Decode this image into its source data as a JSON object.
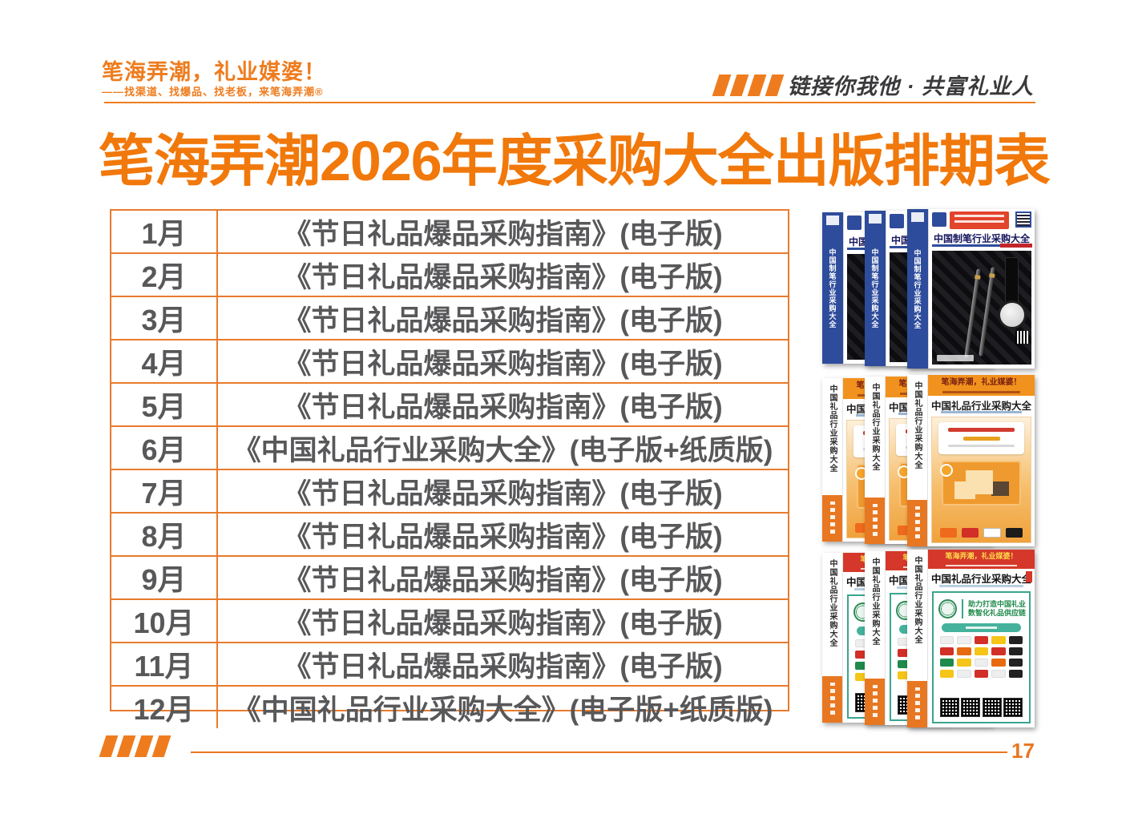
{
  "header": {
    "brand_title": "笔海弄潮，礼业媒婆！",
    "brand_subtitle": "——找渠道、找爆品、找老板，来笔海弄潮®",
    "slogan": "链接你我他 · 共富礼业人"
  },
  "title": "笔海弄潮2026年度采购大全出版排期表",
  "schedule": [
    {
      "month": "1月",
      "publication": "《节日礼品爆品采购指南》(电子版)"
    },
    {
      "month": "2月",
      "publication": "《节日礼品爆品采购指南》(电子版)"
    },
    {
      "month": "3月",
      "publication": "《节日礼品爆品采购指南》(电子版)"
    },
    {
      "month": "4月",
      "publication": "《节日礼品爆品采购指南》(电子版)"
    },
    {
      "month": "5月",
      "publication": "《节日礼品爆品采购指南》(电子版)"
    },
    {
      "month": "6月",
      "publication": "《中国礼品行业采购大全》(电子版+纸质版)"
    },
    {
      "month": "7月",
      "publication": "《节日礼品爆品采购指南》(电子版)"
    },
    {
      "month": "8月",
      "publication": "《节日礼品爆品采购指南》(电子版)"
    },
    {
      "month": "9月",
      "publication": "《节日礼品爆品采购指南》(电子版)"
    },
    {
      "month": "10月",
      "publication": "《节日礼品爆品采购指南》(电子版)"
    },
    {
      "month": "11月",
      "publication": "《节日礼品爆品采购指南》(电子版)"
    },
    {
      "month": "12月",
      "publication": "《中国礼品行业采购大全》(电子版+纸质版)"
    }
  ],
  "books": {
    "stack1": {
      "title": "中国制笔行业采购大全"
    },
    "stack2": {
      "banner": "笔海弄潮，礼业媒婆！",
      "title": "中国礼品行业采购大全"
    },
    "stack3": {
      "banner": "笔海弄潮，礼业媒婆！",
      "title": "中国礼品行业采购大全",
      "tagline_line1": "助力打造中国礼业",
      "tagline_line2": "数智化礼品供应链"
    }
  },
  "footer": {
    "page_number": "17"
  },
  "colors": {
    "accent_orange": "#ee7c1e",
    "title_orange": "#f1780a",
    "table_border": "#e97b2d",
    "table_text": "#58585a",
    "slogan_dark": "#3a3a3c",
    "footer_orange": "#e87722"
  }
}
